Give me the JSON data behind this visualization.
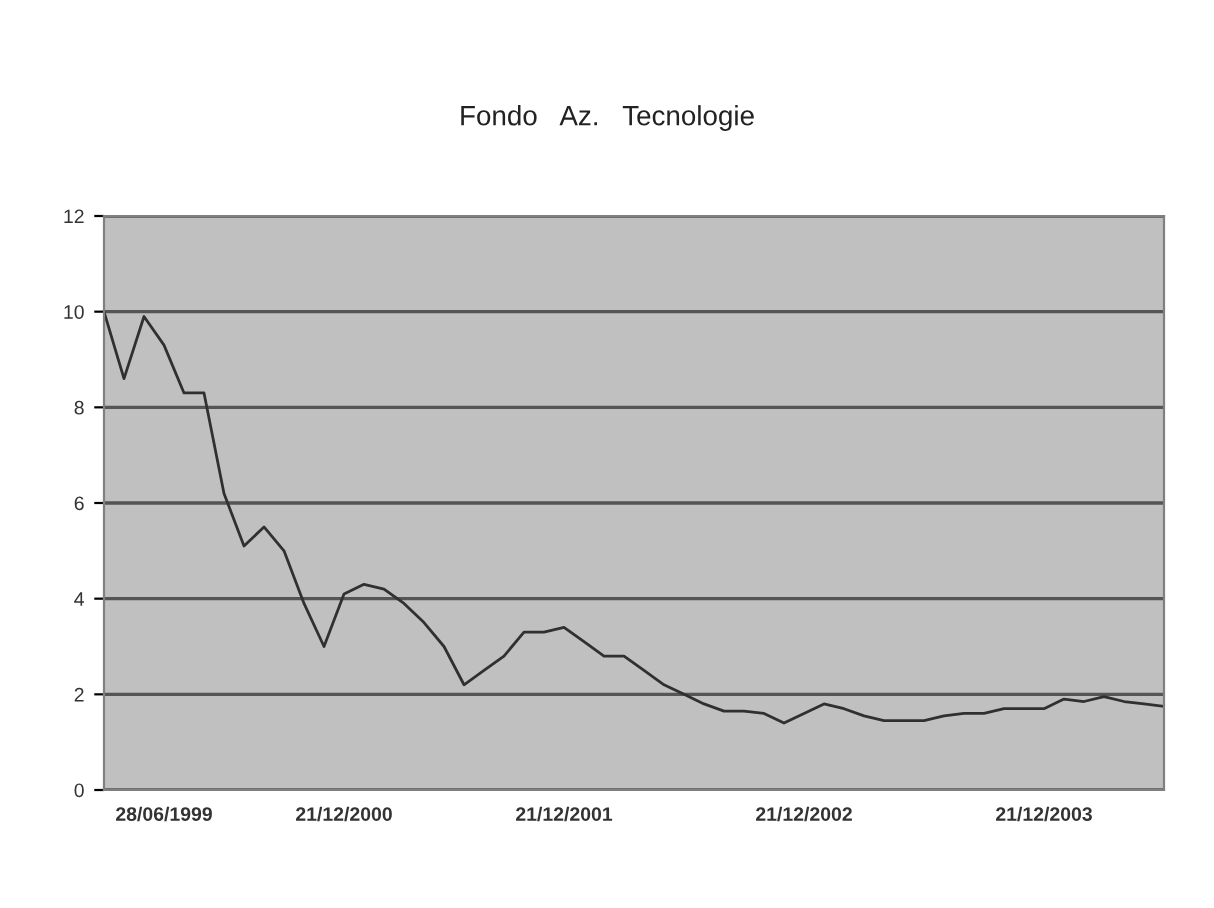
{
  "chart_data": {
    "type": "line",
    "title": "Fondo   Az.   Tecnologie",
    "categories": [
      null,
      null,
      null,
      "28/06/1999",
      null,
      null,
      null,
      null,
      null,
      null,
      null,
      null,
      "21/12/2000",
      null,
      null,
      null,
      null,
      null,
      null,
      null,
      null,
      null,
      null,
      "21/12/2001",
      null,
      null,
      null,
      null,
      null,
      null,
      null,
      null,
      null,
      null,
      null,
      "21/12/2002",
      null,
      null,
      null,
      null,
      null,
      null,
      null,
      null,
      null,
      null,
      null,
      "21/12/2003",
      null,
      null,
      null,
      null,
      null,
      null
    ],
    "series": [
      {
        "color": "#303030",
        "values": [
          10.0,
          8.6,
          9.9,
          9.3,
          8.3,
          8.3,
          6.2,
          5.1,
          5.5,
          5.0,
          3.9,
          3.0,
          4.1,
          4.3,
          4.2,
          3.9,
          3.5,
          3.0,
          2.2,
          2.5,
          2.8,
          3.3,
          3.3,
          3.4,
          3.1,
          2.8,
          2.8,
          2.5,
          2.2,
          2.0,
          1.8,
          1.65,
          1.65,
          1.6,
          1.4,
          1.6,
          1.8,
          1.7,
          1.55,
          1.45,
          1.45,
          1.45,
          1.55,
          1.6,
          1.6,
          1.7,
          1.7,
          1.7,
          1.9,
          1.85,
          1.95,
          1.85,
          1.8,
          1.75
        ]
      }
    ],
    "ylim": [
      0,
      12
    ],
    "yticks": [
      0,
      2,
      4,
      6,
      8,
      10,
      12
    ],
    "grid": "y",
    "legend": false,
    "marker": "none",
    "line_style": "solid"
  }
}
